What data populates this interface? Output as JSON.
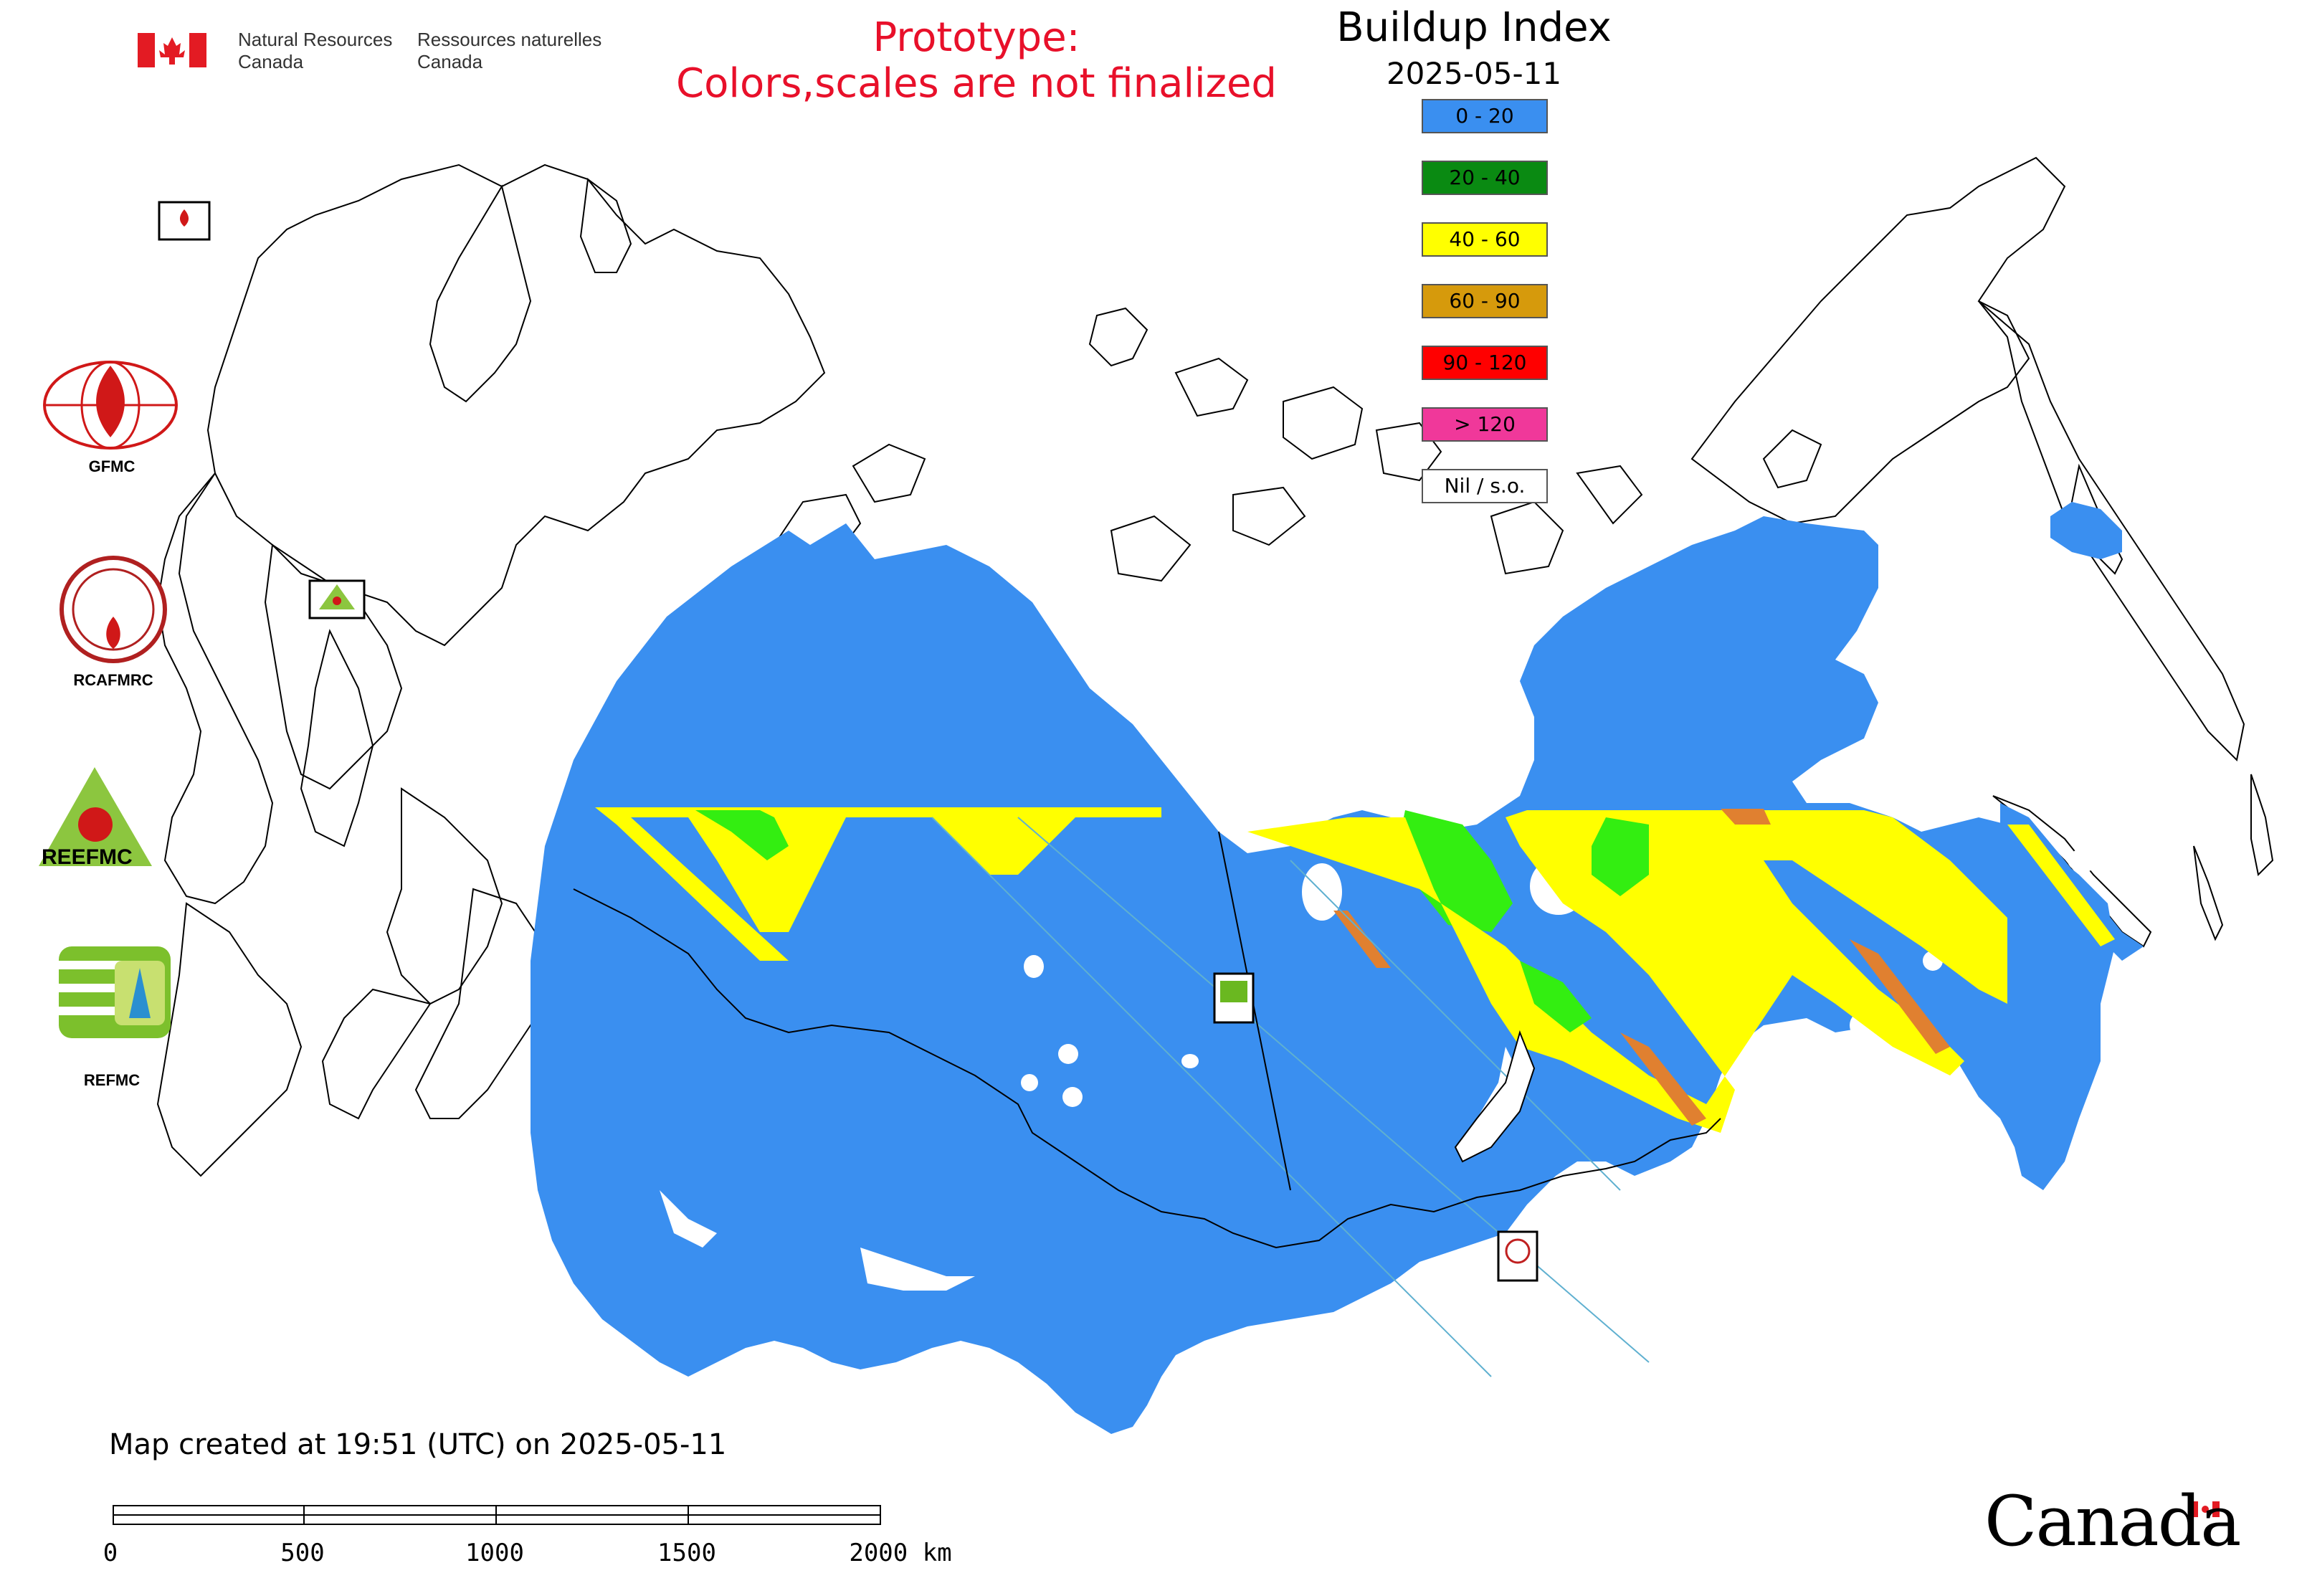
{
  "header": {
    "agency_en": [
      "Natural Resources",
      "Canada"
    ],
    "agency_fr": [
      "Ressources naturelles",
      "Canada"
    ],
    "prototype_line1": "Prototype:",
    "prototype_line2": "Colors,scales are not finalized"
  },
  "legend": {
    "title": "Buildup Index",
    "date": "2025-05-11",
    "items": [
      {
        "label": "0 - 20",
        "color": "#3a8ff0"
      },
      {
        "label": "20 - 40",
        "color": "#0a8a12"
      },
      {
        "label": "40 - 60",
        "color": "#ffff00"
      },
      {
        "label": "60 - 90",
        "color": "#d69a0c"
      },
      {
        "label": "90 - 120",
        "color": "#ff0000"
      },
      {
        "label": "> 120",
        "color": "#f0389a"
      },
      {
        "label": "Nil / s.o.",
        "color": "#ffffff"
      }
    ]
  },
  "logos": [
    {
      "label": "GFMC",
      "icon": "gfmc-logo"
    },
    {
      "label": "RCAFMRC",
      "icon": "rcafmrc-logo"
    },
    {
      "label": "",
      "icon": "reefmc-logo",
      "wordmark": "REEFMC"
    },
    {
      "label": "REFMC",
      "icon": "refmc-logo"
    }
  ],
  "map_markers": [
    {
      "label": "GFMC",
      "icon": "gfmc-marker"
    },
    {
      "label": "REEFMC",
      "icon": "reefmc-marker"
    },
    {
      "label": "REFMC",
      "icon": "refmc-marker"
    },
    {
      "label": "RCAFMRC",
      "icon": "rcafmrc-marker"
    }
  ],
  "footer": {
    "created": "Map created at 19:51 (UTC) on 2025-05-11",
    "scale_labels": [
      "0",
      "500",
      "1000",
      "1500",
      "2000 km"
    ],
    "wordmark": "Canada"
  },
  "colors": {
    "water": "#ffffff",
    "land_outline": "#000000",
    "nodata": "#ffffff",
    "orange_streak": "#e08030",
    "bright_green": "#33ee11"
  }
}
